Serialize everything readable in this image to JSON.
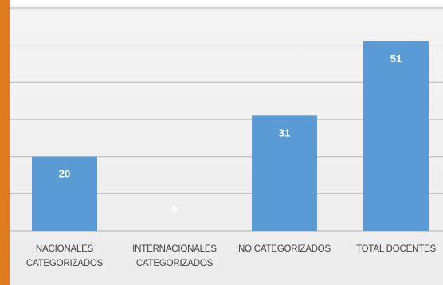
{
  "colors": {
    "accent": "#e07b1f",
    "bar": "#5b9bd5",
    "gridline": "#bdbdbd",
    "panel": "#efefef"
  },
  "chart_data": {
    "type": "bar",
    "categories": [
      [
        "NACIONALES",
        "CATEGORIZADOS"
      ],
      [
        "INTERNACIONALES",
        "CATEGORIZADOS"
      ],
      [
        "NO CATEGORIZADOS"
      ],
      [
        "TOTAL DOCENTES"
      ]
    ],
    "values": [
      20,
      0,
      31,
      51
    ],
    "data_labels": [
      "20",
      "0",
      "31",
      "51"
    ],
    "ylim": [
      0,
      60
    ],
    "y_gridlines": [
      10,
      20,
      30,
      40,
      50,
      60
    ],
    "grid": true,
    "legend": "none"
  }
}
